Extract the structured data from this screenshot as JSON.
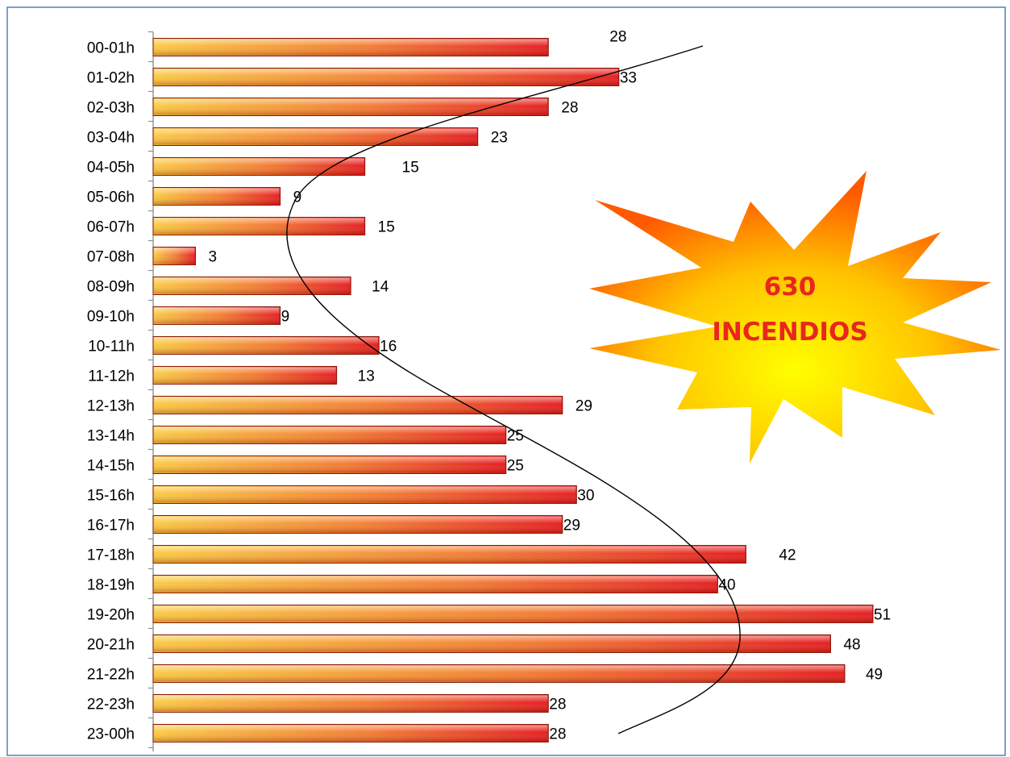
{
  "chart_data": {
    "type": "bar",
    "orientation": "horizontal",
    "categories": [
      "00-01h",
      "01-02h",
      "02-03h",
      "03-04h",
      "04-05h",
      "05-06h",
      "06-07h",
      "07-08h",
      "08-09h",
      "09-10h",
      "10-11h",
      "11-12h",
      "12-13h",
      "13-14h",
      "14-15h",
      "15-16h",
      "16-17h",
      "17-18h",
      "18-19h",
      "19-20h",
      "20-21h",
      "21-22h",
      "22-23h",
      "23-00h"
    ],
    "values": [
      28,
      33,
      28,
      23,
      15,
      9,
      15,
      3,
      14,
      9,
      16,
      13,
      29,
      25,
      25,
      30,
      29,
      42,
      40,
      51,
      48,
      49,
      28,
      28
    ],
    "value_label_offsets": [
      75,
      0,
      15,
      15,
      45,
      15,
      15,
      15,
      25,
      0,
      0,
      25,
      15,
      0,
      0,
      0,
      0,
      40,
      0,
      0,
      15,
      25,
      0,
      0
    ],
    "title": "",
    "xlabel": "",
    "ylabel": "",
    "xlim": [
      0,
      51
    ],
    "grid": false,
    "legend": "none",
    "bar_gradient": {
      "start": "#f8c63a",
      "end": "#e8181a"
    },
    "annotation": {
      "line1": "630",
      "line2": "INCENDIOS"
    },
    "colors": {
      "frame": "#4f81bd",
      "star_inner": "#ffff00",
      "star_outer": "#ff5a00",
      "annotation_text": "#e8261e"
    }
  }
}
